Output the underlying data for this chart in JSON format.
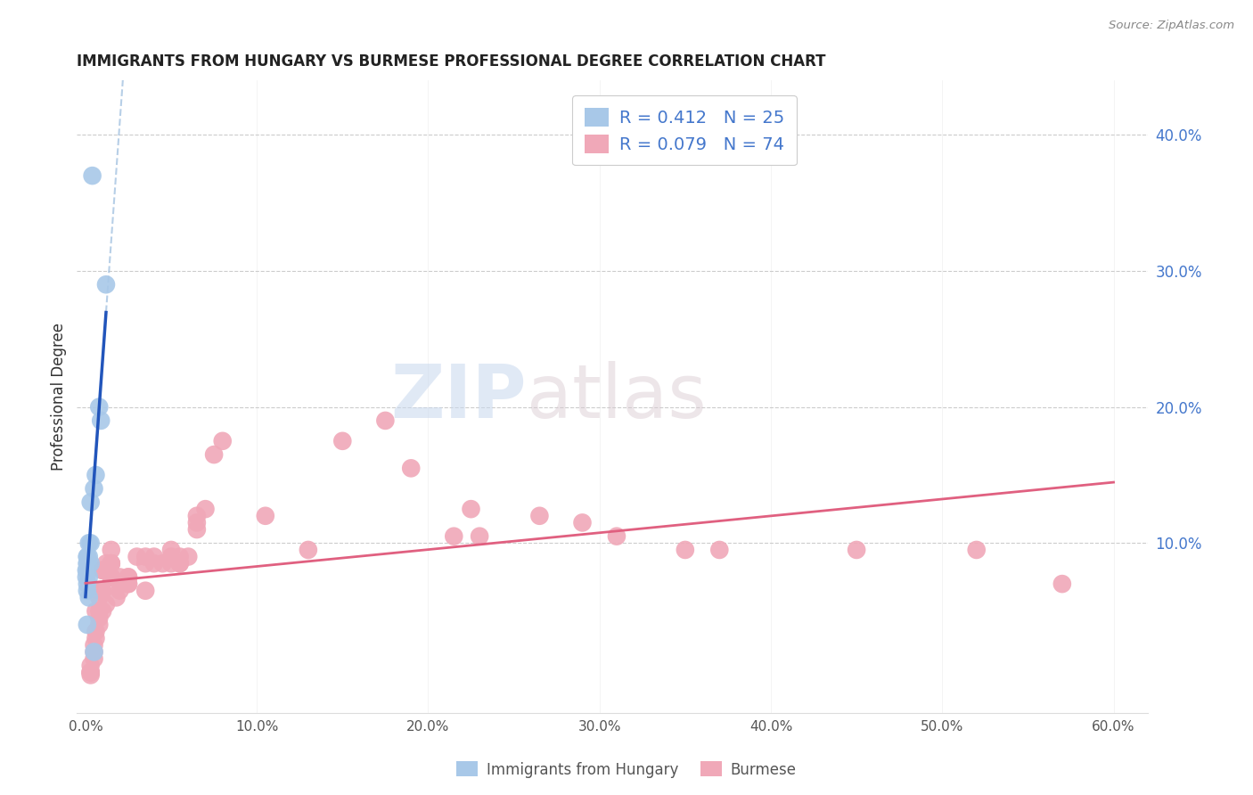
{
  "title": "IMMIGRANTS FROM HUNGARY VS BURMESE PROFESSIONAL DEGREE CORRELATION CHART",
  "source": "Source: ZipAtlas.com",
  "ylabel": "Professional Degree",
  "xlim": [
    -0.005,
    0.62
  ],
  "ylim": [
    -0.025,
    0.44
  ],
  "xticks": [
    0.0,
    0.1,
    0.2,
    0.3,
    0.4,
    0.5,
    0.6
  ],
  "xticklabels": [
    "0.0%",
    "10.0%",
    "20.0%",
    "30.0%",
    "40.0%",
    "50.0%",
    "60.0%"
  ],
  "yticks_right": [
    0.1,
    0.2,
    0.3,
    0.4
  ],
  "yticklabels_right": [
    "10.0%",
    "20.0%",
    "30.0%",
    "40.0%"
  ],
  "grid_color": "#cccccc",
  "background_color": "#ffffff",
  "hungary_color": "#a8c8e8",
  "burmese_color": "#f0a8b8",
  "hungary_line_color": "#2255bb",
  "burmese_line_color": "#e06080",
  "hungary_dash_color": "#99bbdd",
  "legend_hungary_R": "0.412",
  "legend_hungary_N": "25",
  "legend_burmese_R": "0.079",
  "legend_burmese_N": "74",
  "watermark_zip": "ZIP",
  "watermark_atlas": "atlas",
  "hungary_x": [
    0.004,
    0.012,
    0.008,
    0.009,
    0.006,
    0.005,
    0.003,
    0.003,
    0.002,
    0.002,
    0.001,
    0.001,
    0.0015,
    0.001,
    0.001,
    0.0005,
    0.001,
    0.003,
    0.0005,
    0.002,
    0.001,
    0.001,
    0.002,
    0.001,
    0.005
  ],
  "hungary_y": [
    0.37,
    0.29,
    0.2,
    0.19,
    0.15,
    0.14,
    0.13,
    0.1,
    0.1,
    0.09,
    0.09,
    0.09,
    0.085,
    0.085,
    0.085,
    0.08,
    0.08,
    0.085,
    0.075,
    0.075,
    0.07,
    0.065,
    0.06,
    0.04,
    0.02
  ],
  "burmese_x": [
    0.055,
    0.055,
    0.175,
    0.15,
    0.19,
    0.225,
    0.215,
    0.23,
    0.265,
    0.29,
    0.31,
    0.35,
    0.37,
    0.45,
    0.52,
    0.57,
    0.13,
    0.105,
    0.08,
    0.075,
    0.07,
    0.065,
    0.065,
    0.065,
    0.06,
    0.055,
    0.05,
    0.05,
    0.05,
    0.045,
    0.04,
    0.04,
    0.035,
    0.035,
    0.035,
    0.03,
    0.025,
    0.025,
    0.025,
    0.025,
    0.02,
    0.02,
    0.02,
    0.018,
    0.015,
    0.015,
    0.015,
    0.015,
    0.015,
    0.015,
    0.012,
    0.012,
    0.012,
    0.01,
    0.01,
    0.01,
    0.01,
    0.01,
    0.008,
    0.008,
    0.008,
    0.008,
    0.008,
    0.006,
    0.006,
    0.006,
    0.005,
    0.005,
    0.005,
    0.003,
    0.003,
    0.003,
    0.003,
    0.003
  ],
  "burmese_y": [
    0.085,
    0.085,
    0.19,
    0.175,
    0.155,
    0.125,
    0.105,
    0.105,
    0.12,
    0.115,
    0.105,
    0.095,
    0.095,
    0.095,
    0.095,
    0.07,
    0.095,
    0.12,
    0.175,
    0.165,
    0.125,
    0.12,
    0.115,
    0.11,
    0.09,
    0.09,
    0.095,
    0.09,
    0.085,
    0.085,
    0.09,
    0.085,
    0.09,
    0.085,
    0.065,
    0.09,
    0.07,
    0.075,
    0.075,
    0.07,
    0.075,
    0.07,
    0.065,
    0.06,
    0.095,
    0.075,
    0.085,
    0.075,
    0.085,
    0.085,
    0.085,
    0.08,
    0.055,
    0.08,
    0.08,
    0.065,
    0.065,
    0.05,
    0.065,
    0.06,
    0.05,
    0.045,
    0.04,
    0.05,
    0.035,
    0.03,
    0.025,
    0.02,
    0.015,
    0.01,
    0.005,
    0.005,
    0.005,
    0.003
  ]
}
